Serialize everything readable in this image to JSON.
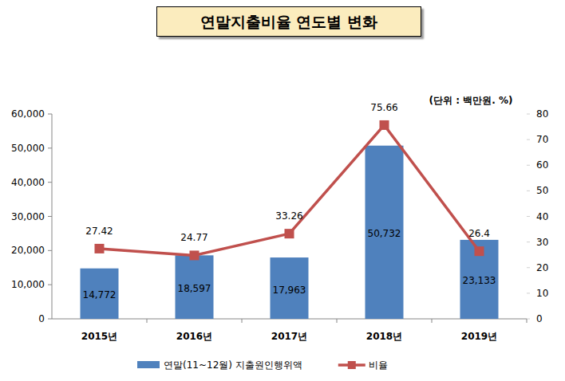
{
  "chart_data": {
    "type": "bar",
    "title": "연말지출비율 연도별 변화",
    "annotations": [
      "(단위 : 백만원. %)"
    ],
    "categories": [
      "2015년",
      "2016년",
      "2017년",
      "2018년",
      "2019년"
    ],
    "series": [
      {
        "name": "연말(11~12월) 지출원인행위액",
        "type": "bar",
        "color": "#4f81bd",
        "values": [
          14772,
          18597,
          17963,
          50732,
          23133
        ],
        "value_labels": [
          "14,772",
          "18,597",
          "17,963",
          "50,732",
          "23,133"
        ]
      },
      {
        "name": "비율",
        "type": "line",
        "axis": "y2",
        "color": "#c0504d",
        "marker": "square",
        "values": [
          27.42,
          24.77,
          33.26,
          75.66,
          26.4
        ]
      }
    ],
    "ylim": [
      0,
      60000
    ],
    "yticks": [
      0,
      {
        "value": 10000,
        "label": "10,000"
      },
      {
        "value": 20000,
        "label": "20,000"
      },
      {
        "value": 30000,
        "label": "30,000"
      },
      {
        "value": 40000,
        "label": "40,000"
      },
      {
        "value": 50000,
        "label": "50,000"
      },
      {
        "value": 60000,
        "label": "60,000"
      }
    ],
    "y2lim": [
      0,
      80
    ],
    "y2ticks": [
      0,
      10,
      20,
      30,
      40,
      50,
      60,
      70,
      80
    ],
    "grid": false,
    "data_labels": true,
    "legend": "bottom"
  }
}
